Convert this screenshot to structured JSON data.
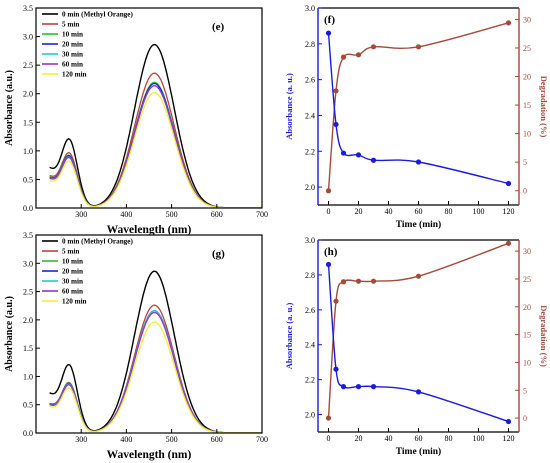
{
  "chart_data": [
    {
      "panel": "(e)",
      "type": "line",
      "xlabel": "Wavelength (nm)",
      "ylabel": "Absorbance (a.u.)",
      "xlim": [
        200,
        700
      ],
      "ylim": [
        0.0,
        3.5
      ],
      "xticks": [
        300,
        400,
        500,
        600,
        700
      ],
      "yticks": [
        0.0,
        0.5,
        1.0,
        1.5,
        2.0,
        2.5,
        3.0,
        3.5
      ],
      "legend_position": "top-left",
      "series": [
        {
          "name": "0 min (Methyl Orange)",
          "color": "#000000",
          "peak1": 1.15,
          "peak2": 2.86
        },
        {
          "name": "5 min",
          "color": "#b5473a",
          "peak1": 0.92,
          "peak2": 2.36
        },
        {
          "name": "10 min",
          "color": "#33bb33",
          "peak1": 0.88,
          "peak2": 2.2
        },
        {
          "name": "20 min",
          "color": "#2222cc",
          "peak1": 0.87,
          "peak2": 2.18
        },
        {
          "name": "30 min",
          "color": "#22cccc",
          "peak1": 0.85,
          "peak2": 2.14
        },
        {
          "name": "60 min",
          "color": "#9933cc",
          "peak1": 0.84,
          "peak2": 2.14
        },
        {
          "name": "120 min",
          "color": "#f2ee38",
          "peak1": 0.78,
          "peak2": 2.02
        }
      ]
    },
    {
      "panel": "(f)",
      "type": "line",
      "xlabel": "Time (min)",
      "ylabel_left": "Absorbance (a. u.)",
      "ylabel_right": "Degradation (%)",
      "xlim": [
        -7,
        127
      ],
      "ylim_left": [
        1.9,
        3.0
      ],
      "ylim_right": [
        -2.5,
        32
      ],
      "xticks": [
        0,
        20,
        40,
        60,
        80,
        100,
        120
      ],
      "yticks_left": [
        2.0,
        2.2,
        2.4,
        2.6,
        2.8,
        3.0
      ],
      "yticks_right": [
        0,
        5,
        10,
        15,
        20,
        25,
        30
      ],
      "x": [
        0,
        5,
        10,
        20,
        30,
        60,
        120
      ],
      "absorbance": [
        2.86,
        2.35,
        2.19,
        2.18,
        2.15,
        2.14,
        2.02
      ],
      "degradation": [
        0,
        17.5,
        23.4,
        23.8,
        25.2,
        25.2,
        29.4
      ],
      "absorbance_color": "#1a1ae0",
      "degradation_color": "#a34a3a"
    },
    {
      "panel": "(g)",
      "type": "line",
      "xlabel": "Wavelength (nm)",
      "ylabel": "Absorbance (a.u.)",
      "xlim": [
        200,
        700
      ],
      "ylim": [
        0.0,
        3.5
      ],
      "xticks": [
        300,
        400,
        500,
        600,
        700
      ],
      "yticks": [
        0.0,
        0.5,
        1.0,
        1.5,
        2.0,
        2.5,
        3.0,
        3.5
      ],
      "legend_position": "top-left",
      "series": [
        {
          "name": "0 min (Methyl Orange)",
          "color": "#000000",
          "peak1": 1.15,
          "peak2": 2.86
        },
        {
          "name": "5 min",
          "color": "#b5473a",
          "peak1": 0.85,
          "peak2": 2.26
        },
        {
          "name": "10 min",
          "color": "#33bb33",
          "peak1": 0.84,
          "peak2": 2.16
        },
        {
          "name": "20 min",
          "color": "#2222cc",
          "peak1": 0.83,
          "peak2": 2.16
        },
        {
          "name": "30 min",
          "color": "#22cccc",
          "peak1": 0.82,
          "peak2": 2.16
        },
        {
          "name": "60 min",
          "color": "#9933cc",
          "peak1": 0.81,
          "peak2": 2.13
        },
        {
          "name": "120 min",
          "color": "#f2ee38",
          "peak1": 0.76,
          "peak2": 1.96
        }
      ]
    },
    {
      "panel": "(h)",
      "type": "line",
      "xlabel": "Time (min)",
      "ylabel_left": "Absorbance (a. u.)",
      "ylabel_right": "Degradation (%)",
      "xlim": [
        -7,
        127
      ],
      "ylim_left": [
        1.9,
        3.0
      ],
      "ylim_right": [
        -2.5,
        32
      ],
      "xticks": [
        0,
        20,
        40,
        60,
        80,
        100,
        120
      ],
      "yticks_left": [
        2.0,
        2.2,
        2.4,
        2.6,
        2.8,
        3.0
      ],
      "yticks_right": [
        0,
        5,
        10,
        15,
        20,
        25,
        30
      ],
      "x": [
        0,
        5,
        10,
        20,
        30,
        60,
        120
      ],
      "absorbance": [
        2.86,
        2.26,
        2.16,
        2.16,
        2.16,
        2.13,
        1.96
      ],
      "degradation": [
        0,
        21.0,
        24.5,
        24.6,
        24.6,
        25.5,
        31.4
      ],
      "absorbance_color": "#1a1ae0",
      "degradation_color": "#a34a3a"
    }
  ]
}
